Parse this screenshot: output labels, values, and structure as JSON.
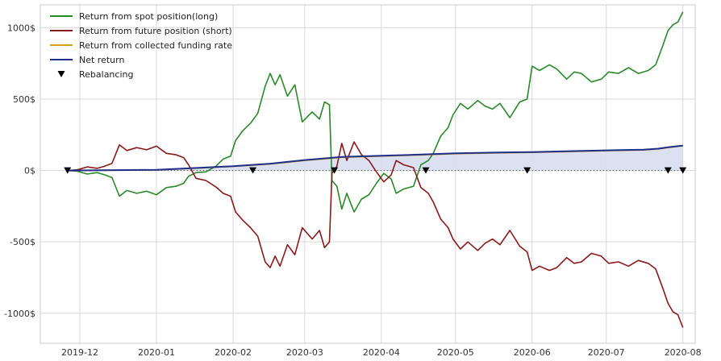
{
  "chart_data": {
    "type": "line",
    "title": "",
    "xlabel": "",
    "ylabel": "",
    "grid": true,
    "legend_position": "top-left",
    "x_tick_labels": [
      "2019-12",
      "2020-01",
      "2020-02",
      "2020-03",
      "2020-04",
      "2020-05",
      "2020-06",
      "2020-07",
      "2020-08"
    ],
    "y_ticks": [
      -1000,
      -500,
      0,
      500,
      1000
    ],
    "y_tick_labels": [
      "-1000$",
      "-500$",
      "0$",
      "500$",
      "1000$"
    ],
    "xlim": [
      "2019-11-15",
      "2020-08-06"
    ],
    "ylim": [
      -1210,
      1160
    ],
    "colors": {
      "spot": "#2a8a2a",
      "future": "#8b1a1a",
      "funding": "#d4a017",
      "net": "#1f2f8a",
      "fill": "#d6dcf0",
      "rebalance": "#000000"
    },
    "series": [
      {
        "name": "Return from spot position(long)",
        "key": "spot",
        "points": [
          [
            "2019-11-26",
            0
          ],
          [
            "2019-11-30",
            -5
          ],
          [
            "2019-12-04",
            -25
          ],
          [
            "2019-12-08",
            -15
          ],
          [
            "2019-12-11",
            -30
          ],
          [
            "2019-12-14",
            -50
          ],
          [
            "2019-12-17",
            -180
          ],
          [
            "2019-12-20",
            -140
          ],
          [
            "2019-12-24",
            -160
          ],
          [
            "2019-12-28",
            -145
          ],
          [
            "2020-01-01",
            -170
          ],
          [
            "2020-01-05",
            -120
          ],
          [
            "2020-01-09",
            -110
          ],
          [
            "2020-01-12",
            -90
          ],
          [
            "2020-01-14",
            -40
          ],
          [
            "2020-01-17",
            -15
          ],
          [
            "2020-01-21",
            -10
          ],
          [
            "2020-01-25",
            30
          ],
          [
            "2020-01-28",
            80
          ],
          [
            "2020-01-31",
            100
          ],
          [
            "2020-02-02",
            210
          ],
          [
            "2020-02-05",
            280
          ],
          [
            "2020-02-08",
            330
          ],
          [
            "2020-02-11",
            400
          ],
          [
            "2020-02-14",
            590
          ],
          [
            "2020-02-16",
            680
          ],
          [
            "2020-02-18",
            600
          ],
          [
            "2020-02-20",
            670
          ],
          [
            "2020-02-23",
            520
          ],
          [
            "2020-02-26",
            600
          ],
          [
            "2020-02-29",
            340
          ],
          [
            "2020-03-04",
            410
          ],
          [
            "2020-03-07",
            360
          ],
          [
            "2020-03-09",
            480
          ],
          [
            "2020-03-11",
            460
          ],
          [
            "2020-03-12",
            -70
          ],
          [
            "2020-03-14",
            -110
          ],
          [
            "2020-03-16",
            -270
          ],
          [
            "2020-03-18",
            -160
          ],
          [
            "2020-03-21",
            -290
          ],
          [
            "2020-03-24",
            -200
          ],
          [
            "2020-03-27",
            -170
          ],
          [
            "2020-03-30",
            -90
          ],
          [
            "2020-04-02",
            -20
          ],
          [
            "2020-04-05",
            -60
          ],
          [
            "2020-04-07",
            -160
          ],
          [
            "2020-04-10",
            -130
          ],
          [
            "2020-04-14",
            -110
          ],
          [
            "2020-04-17",
            40
          ],
          [
            "2020-04-20",
            70
          ],
          [
            "2020-04-22",
            120
          ],
          [
            "2020-04-25",
            240
          ],
          [
            "2020-04-28",
            300
          ],
          [
            "2020-04-30",
            390
          ],
          [
            "2020-05-03",
            470
          ],
          [
            "2020-05-06",
            430
          ],
          [
            "2020-05-10",
            490
          ],
          [
            "2020-05-13",
            450
          ],
          [
            "2020-05-16",
            430
          ],
          [
            "2020-05-19",
            470
          ],
          [
            "2020-05-23",
            370
          ],
          [
            "2020-05-27",
            480
          ],
          [
            "2020-05-30",
            500
          ],
          [
            "2020-06-01",
            730
          ],
          [
            "2020-06-04",
            700
          ],
          [
            "2020-06-08",
            740
          ],
          [
            "2020-06-11",
            710
          ],
          [
            "2020-06-15",
            640
          ],
          [
            "2020-06-18",
            690
          ],
          [
            "2020-06-21",
            680
          ],
          [
            "2020-06-25",
            620
          ],
          [
            "2020-06-29",
            640
          ],
          [
            "2020-07-02",
            690
          ],
          [
            "2020-07-06",
            680
          ],
          [
            "2020-07-10",
            720
          ],
          [
            "2020-07-14",
            680
          ],
          [
            "2020-07-18",
            700
          ],
          [
            "2020-07-21",
            740
          ],
          [
            "2020-07-24",
            880
          ],
          [
            "2020-07-26",
            980
          ],
          [
            "2020-07-28",
            1020
          ],
          [
            "2020-07-30",
            1040
          ],
          [
            "2020-08-01",
            1110
          ]
        ]
      },
      {
        "name": "Return from future position (short)",
        "key": "future",
        "points": [
          [
            "2019-11-26",
            0
          ],
          [
            "2019-11-30",
            5
          ],
          [
            "2019-12-04",
            25
          ],
          [
            "2019-12-08",
            15
          ],
          [
            "2019-12-11",
            30
          ],
          [
            "2019-12-14",
            50
          ],
          [
            "2019-12-17",
            180
          ],
          [
            "2019-12-20",
            140
          ],
          [
            "2019-12-24",
            160
          ],
          [
            "2019-12-28",
            145
          ],
          [
            "2020-01-01",
            170
          ],
          [
            "2020-01-05",
            120
          ],
          [
            "2020-01-09",
            110
          ],
          [
            "2020-01-12",
            90
          ],
          [
            "2020-01-14",
            40
          ],
          [
            "2020-01-17",
            -55
          ],
          [
            "2020-01-21",
            -70
          ],
          [
            "2020-01-25",
            -115
          ],
          [
            "2020-01-28",
            -160
          ],
          [
            "2020-01-31",
            -180
          ],
          [
            "2020-02-02",
            -290
          ],
          [
            "2020-02-05",
            -350
          ],
          [
            "2020-02-08",
            -400
          ],
          [
            "2020-02-11",
            -460
          ],
          [
            "2020-02-14",
            -640
          ],
          [
            "2020-02-16",
            -680
          ],
          [
            "2020-02-18",
            -600
          ],
          [
            "2020-02-20",
            -670
          ],
          [
            "2020-02-23",
            -520
          ],
          [
            "2020-02-26",
            -590
          ],
          [
            "2020-02-29",
            -400
          ],
          [
            "2020-03-04",
            -480
          ],
          [
            "2020-03-07",
            -420
          ],
          [
            "2020-03-09",
            -540
          ],
          [
            "2020-03-11",
            -500
          ],
          [
            "2020-03-12",
            -20
          ],
          [
            "2020-03-14",
            30
          ],
          [
            "2020-03-16",
            190
          ],
          [
            "2020-03-18",
            70
          ],
          [
            "2020-03-21",
            200
          ],
          [
            "2020-03-24",
            110
          ],
          [
            "2020-03-27",
            70
          ],
          [
            "2020-03-30",
            -10
          ],
          [
            "2020-04-02",
            -80
          ],
          [
            "2020-04-05",
            -30
          ],
          [
            "2020-04-07",
            70
          ],
          [
            "2020-04-10",
            40
          ],
          [
            "2020-04-14",
            20
          ],
          [
            "2020-04-17",
            -120
          ],
          [
            "2020-04-20",
            -160
          ],
          [
            "2020-04-22",
            -220
          ],
          [
            "2020-04-25",
            -340
          ],
          [
            "2020-04-28",
            -400
          ],
          [
            "2020-04-30",
            -480
          ],
          [
            "2020-05-03",
            -550
          ],
          [
            "2020-05-06",
            -500
          ],
          [
            "2020-05-10",
            -560
          ],
          [
            "2020-05-13",
            -510
          ],
          [
            "2020-05-16",
            -480
          ],
          [
            "2020-05-19",
            -520
          ],
          [
            "2020-05-23",
            -420
          ],
          [
            "2020-05-27",
            -530
          ],
          [
            "2020-05-30",
            -570
          ],
          [
            "2020-06-01",
            -700
          ],
          [
            "2020-06-04",
            -670
          ],
          [
            "2020-06-08",
            -700
          ],
          [
            "2020-06-11",
            -680
          ],
          [
            "2020-06-15",
            -610
          ],
          [
            "2020-06-18",
            -650
          ],
          [
            "2020-06-21",
            -640
          ],
          [
            "2020-06-25",
            -580
          ],
          [
            "2020-06-29",
            -600
          ],
          [
            "2020-07-02",
            -650
          ],
          [
            "2020-07-06",
            -640
          ],
          [
            "2020-07-10",
            -670
          ],
          [
            "2020-07-14",
            -630
          ],
          [
            "2020-07-18",
            -650
          ],
          [
            "2020-07-21",
            -690
          ],
          [
            "2020-07-24",
            -830
          ],
          [
            "2020-07-26",
            -930
          ],
          [
            "2020-07-28",
            -990
          ],
          [
            "2020-07-30",
            -1010
          ],
          [
            "2020-08-01",
            -1100
          ]
        ]
      },
      {
        "name": "Return from collected funding rate",
        "key": "funding",
        "points": [
          [
            "2019-11-26",
            0
          ],
          [
            "2020-01-01",
            4
          ],
          [
            "2020-02-01",
            28
          ],
          [
            "2020-02-16",
            45
          ],
          [
            "2020-03-01",
            70
          ],
          [
            "2020-03-16",
            92
          ],
          [
            "2020-04-01",
            100
          ],
          [
            "2020-04-16",
            108
          ],
          [
            "2020-05-01",
            117
          ],
          [
            "2020-05-16",
            122
          ],
          [
            "2020-06-01",
            126
          ],
          [
            "2020-06-16",
            132
          ],
          [
            "2020-07-01",
            138
          ],
          [
            "2020-07-16",
            143
          ],
          [
            "2020-07-22",
            150
          ],
          [
            "2020-07-26",
            160
          ],
          [
            "2020-08-01",
            172
          ]
        ]
      },
      {
        "name": "Net return",
        "key": "net",
        "points": [
          [
            "2019-11-26",
            0
          ],
          [
            "2020-01-01",
            5
          ],
          [
            "2020-02-01",
            30
          ],
          [
            "2020-02-16",
            48
          ],
          [
            "2020-03-01",
            73
          ],
          [
            "2020-03-16",
            95
          ],
          [
            "2020-04-01",
            103
          ],
          [
            "2020-04-16",
            111
          ],
          [
            "2020-05-01",
            120
          ],
          [
            "2020-05-16",
            125
          ],
          [
            "2020-06-01",
            129
          ],
          [
            "2020-06-16",
            135
          ],
          [
            "2020-07-01",
            141
          ],
          [
            "2020-07-16",
            146
          ],
          [
            "2020-07-22",
            153
          ],
          [
            "2020-07-26",
            163
          ],
          [
            "2020-08-01",
            175
          ]
        ]
      },
      {
        "name": "Rebalancing",
        "key": "rebalance",
        "marker": "triangle-down",
        "points": [
          [
            "2019-11-26",
            0
          ],
          [
            "2020-02-09",
            0
          ],
          [
            "2020-03-13",
            0
          ],
          [
            "2020-04-19",
            0
          ],
          [
            "2020-05-30",
            0
          ],
          [
            "2020-07-26",
            0
          ],
          [
            "2020-08-01",
            0
          ]
        ]
      }
    ]
  }
}
